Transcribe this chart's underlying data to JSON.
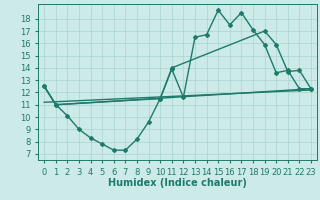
{
  "bg_color": "#cceae7",
  "grid_color": "#aad4cf",
  "line_color": "#1e7a6a",
  "line_width": 1.0,
  "marker": "D",
  "marker_size": 2.0,
  "xlabel": "Humidex (Indice chaleur)",
  "xlabel_fontsize": 7,
  "tick_fontsize": 6,
  "xlim": [
    -0.5,
    23.5
  ],
  "ylim": [
    6.5,
    19.2
  ],
  "yticks": [
    7,
    8,
    9,
    10,
    11,
    12,
    13,
    14,
    15,
    16,
    17,
    18
  ],
  "xticks": [
    0,
    1,
    2,
    3,
    4,
    5,
    6,
    7,
    8,
    9,
    10,
    11,
    12,
    13,
    14,
    15,
    16,
    17,
    18,
    19,
    20,
    21,
    22,
    23
  ],
  "line1_x": [
    0,
    1,
    2,
    3,
    4,
    5,
    6,
    7,
    8,
    9,
    10,
    11,
    12,
    13,
    14,
    15,
    16,
    17,
    18,
    19,
    20,
    21,
    22,
    23
  ],
  "line1_y": [
    12.5,
    11.0,
    10.1,
    9.0,
    8.3,
    7.8,
    7.3,
    7.3,
    8.2,
    9.6,
    11.5,
    13.9,
    11.6,
    16.5,
    16.7,
    18.7,
    17.5,
    18.5,
    17.1,
    15.9,
    13.6,
    13.8,
    12.3,
    12.3
  ],
  "line2_x": [
    0,
    1,
    10,
    11,
    19,
    20,
    21,
    22,
    23
  ],
  "line2_y": [
    12.5,
    11.0,
    11.5,
    14.0,
    17.0,
    15.9,
    13.7,
    13.8,
    12.3
  ],
  "line3_x": [
    0,
    1,
    23
  ],
  "line3_y": [
    12.5,
    11.0,
    12.3
  ],
  "line4_x": [
    0,
    23
  ],
  "line4_y": [
    11.2,
    12.2
  ]
}
